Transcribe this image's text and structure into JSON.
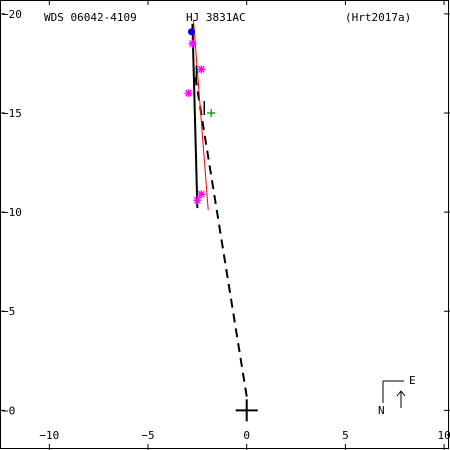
{
  "header": {
    "wds": "WDS 06042-4109",
    "name": "HJ 3831AC",
    "ref": "(Hrt2017a)"
  },
  "compass": {
    "east": "E",
    "north": "N"
  },
  "chart_data": {
    "type": "scatter",
    "xlim": [
      -12.5,
      10.3
    ],
    "ylim": [
      -2.0,
      20.7
    ],
    "x_ticks": [
      {
        "value": -10,
        "label": "−10"
      },
      {
        "value": -5,
        "label": "−5"
      },
      {
        "value": 0,
        "label": "0"
      },
      {
        "value": 5,
        "label": "5"
      },
      {
        "value": 10,
        "label": "10"
      }
    ],
    "y_ticks": [
      {
        "value": 0,
        "label": "−0"
      },
      {
        "value": 5,
        "label": "−5"
      },
      {
        "value": 10,
        "label": "−10"
      },
      {
        "value": 15,
        "label": "−15"
      },
      {
        "value": 20,
        "label": "−20"
      }
    ],
    "primary": {
      "x": 0,
      "y": 0
    },
    "orbit_dashed": [
      [
        0,
        0.7
      ],
      [
        -2.6,
        16.8
      ]
    ],
    "fit_black": [
      [
        -2.75,
        19.5
      ],
      [
        -2.5,
        10.2
      ]
    ],
    "fit_red": [
      [
        -2.7,
        19.7
      ],
      [
        -1.95,
        10.1
      ]
    ],
    "observations_magenta": [
      [
        -2.75,
        18.5
      ],
      [
        -2.3,
        17.2
      ],
      [
        -2.95,
        16.0
      ],
      [
        -2.3,
        10.9
      ],
      [
        -2.5,
        10.6
      ]
    ],
    "observations_green": [
      [
        -1.8,
        15.0
      ]
    ],
    "observations_blue": [
      [
        -2.8,
        19.1
      ]
    ],
    "residual_lines": [
      [
        [
          -2.55,
          17.4
        ],
        [
          -2.55,
          16.5
        ]
      ],
      [
        [
          -2.15,
          15.6
        ],
        [
          -2.15,
          14.9
        ]
      ]
    ],
    "colors": {
      "orbit": "#000000",
      "fit_red": "#ff0000",
      "magenta": "#ff00ff",
      "green": "#00aa00",
      "blue": "#0000ff"
    }
  }
}
